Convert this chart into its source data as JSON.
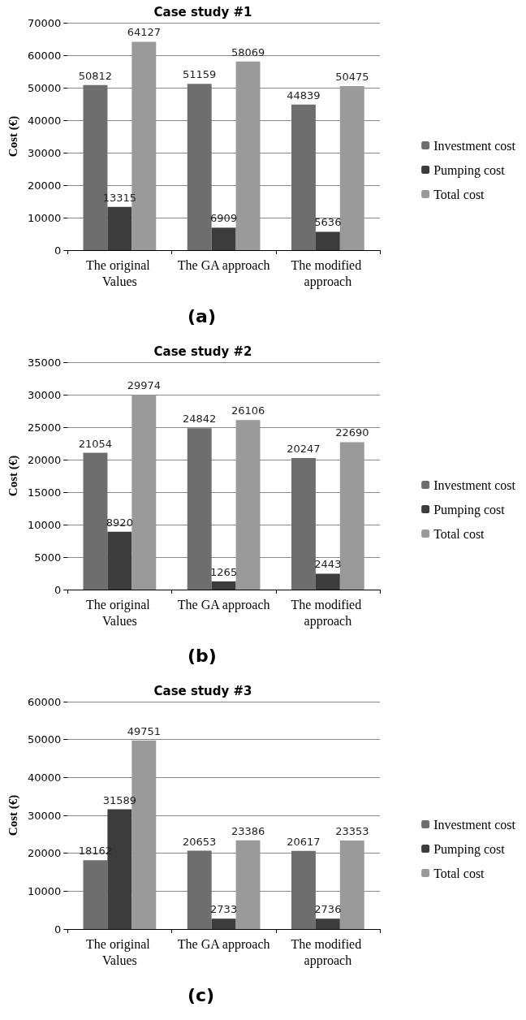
{
  "chart_data": [
    {
      "type": "bar",
      "title": "Case study #1",
      "ylabel": "Cost (€)",
      "categories": [
        "The original Values",
        "The GA approach",
        "The modified approach"
      ],
      "series": [
        {
          "name": "Investment cost",
          "color": "#6e6e6e",
          "values": [
            50812,
            51159,
            44839
          ]
        },
        {
          "name": "Pumping cost",
          "color": "#3c3c3c",
          "values": [
            13315,
            6909,
            5636
          ]
        },
        {
          "name": "Total cost",
          "color": "#9a9a9a",
          "values": [
            64127,
            58069,
            50475
          ]
        }
      ],
      "ylim": [
        0,
        70000
      ],
      "yticks": [
        0,
        10000,
        20000,
        30000,
        40000,
        50000,
        60000,
        70000
      ],
      "grid": "y",
      "legend": "right",
      "data_labels": true,
      "annotations": [
        "(a)"
      ]
    },
    {
      "type": "bar",
      "title": "Case study #2",
      "ylabel": "Cost (€)",
      "categories": [
        "The original Values",
        "The GA approach",
        "The modified approach"
      ],
      "series": [
        {
          "name": "Investment cost",
          "color": "#6e6e6e",
          "values": [
            21054,
            24842,
            20247
          ]
        },
        {
          "name": "Pumping cost",
          "color": "#3c3c3c",
          "values": [
            8920,
            1265,
            2443
          ]
        },
        {
          "name": "Total cost",
          "color": "#9a9a9a",
          "values": [
            29974,
            26106,
            22690
          ]
        }
      ],
      "ylim": [
        0,
        35000
      ],
      "yticks": [
        0,
        5000,
        10000,
        15000,
        20000,
        25000,
        30000,
        35000
      ],
      "grid": "y",
      "legend": "right",
      "data_labels": true,
      "annotations": [
        "(b)"
      ]
    },
    {
      "type": "bar",
      "title": "Case study #3",
      "ylabel": "Cost (€)",
      "categories": [
        "The original Values",
        "The GA approach",
        "The modified approach"
      ],
      "series": [
        {
          "name": "Investment cost",
          "color": "#6e6e6e",
          "values": [
            18162,
            20653,
            20617
          ]
        },
        {
          "name": "Pumping cost",
          "color": "#3c3c3c",
          "values": [
            31589,
            2733,
            2736
          ]
        },
        {
          "name": "Total cost",
          "color": "#9a9a9a",
          "values": [
            49751,
            23386,
            23353
          ]
        }
      ],
      "ylim": [
        0,
        60000
      ],
      "yticks": [
        0,
        10000,
        20000,
        30000,
        40000,
        50000,
        60000
      ],
      "grid": "y",
      "legend": "right",
      "data_labels": true,
      "annotations": [
        "(c)"
      ]
    }
  ]
}
